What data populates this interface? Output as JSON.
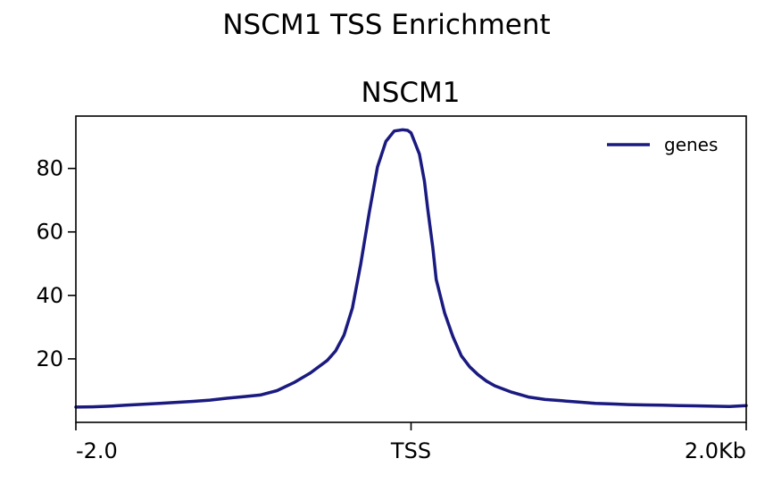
{
  "chart_data": {
    "type": "line",
    "suptitle": "NSCM1 TSS Enrichment",
    "title": "NSCM1",
    "xlabel": "",
    "ylabel": "",
    "xlim": [
      -2000,
      2000
    ],
    "ylim": [
      0,
      96.5
    ],
    "x_ticks": [
      {
        "value": -2000,
        "label": "-2.0"
      },
      {
        "value": 0,
        "label": "TSS"
      },
      {
        "value": 2000,
        "label": "2.0Kb"
      }
    ],
    "y_ticks": [
      20,
      40,
      60,
      80
    ],
    "legend": {
      "position": "top-right"
    },
    "grid": false,
    "series": [
      {
        "name": "genes",
        "color": "#1a1a80",
        "x": [
          -2000,
          -1900,
          -1800,
          -1700,
          -1600,
          -1500,
          -1400,
          -1300,
          -1200,
          -1100,
          -1000,
          -900,
          -800,
          -700,
          -600,
          -500,
          -450,
          -400,
          -350,
          -300,
          -250,
          -200,
          -150,
          -100,
          -50,
          -20,
          0,
          20,
          50,
          80,
          100,
          130,
          150,
          200,
          250,
          300,
          350,
          400,
          450,
          500,
          600,
          700,
          800,
          900,
          1000,
          1100,
          1200,
          1300,
          1400,
          1500,
          1600,
          1700,
          1800,
          1900,
          2000
        ],
        "values": [
          4.8,
          4.9,
          5.1,
          5.4,
          5.7,
          6.0,
          6.3,
          6.6,
          7.0,
          7.6,
          8.1,
          8.6,
          10.0,
          12.5,
          15.6,
          19.5,
          22.5,
          27.5,
          36.0,
          50.0,
          66.0,
          80.5,
          88.5,
          91.8,
          92.2,
          92.0,
          91.2,
          88.5,
          84.5,
          76.0,
          67.0,
          55.0,
          45.0,
          34.5,
          27.0,
          21.0,
          17.5,
          15.0,
          13.0,
          11.5,
          9.5,
          8.0,
          7.2,
          6.8,
          6.4,
          6.0,
          5.8,
          5.6,
          5.5,
          5.4,
          5.3,
          5.2,
          5.1,
          5.0,
          5.3
        ]
      }
    ]
  }
}
